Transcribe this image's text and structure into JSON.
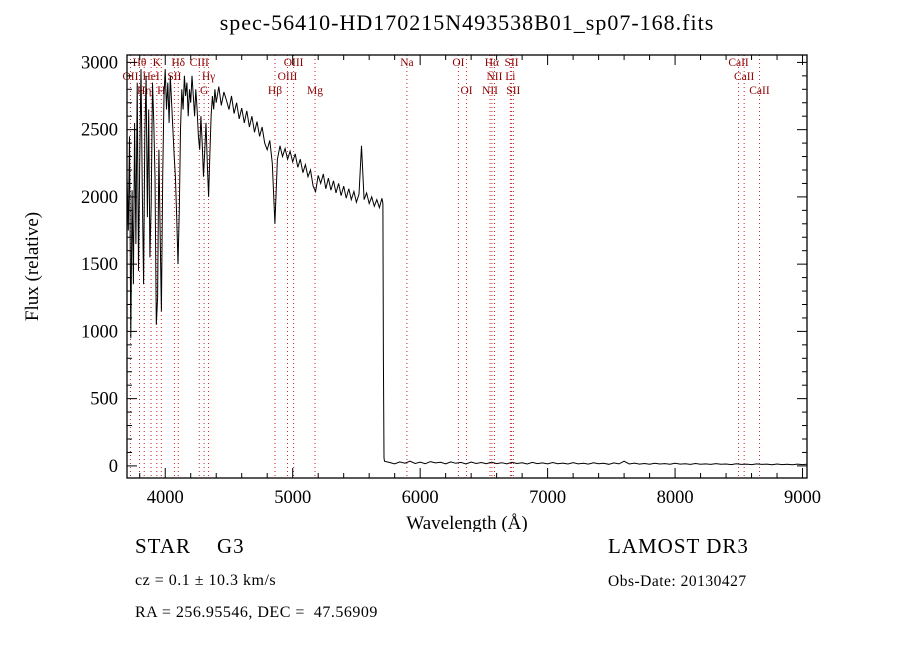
{
  "title": "spec-56410-HD170215N493538B01_sp07-168.fits",
  "footer": {
    "object_type": "STAR",
    "subclass": "G3",
    "cz": "cz = 0.1 ± 10.3 km/s",
    "ra_dec": "RA = 256.95546, DEC =  47.56909",
    "survey": "LAMOST DR3",
    "obs_date": "Obs-Date: 20130427"
  },
  "chart_data": {
    "type": "line",
    "title": "spec-56410-HD170215N493538B01_sp07-168.fits",
    "xlabel": "Wavelength (Å)",
    "ylabel": "Flux (relative)",
    "grid": false,
    "legend": "none",
    "xlim": [
      3700,
      9035
    ],
    "ylim": [
      -90,
      3055
    ],
    "x_ticks": [
      4000,
      5000,
      6000,
      7000,
      8000,
      9000
    ],
    "y_ticks": [
      0,
      500,
      1000,
      1500,
      2000,
      2500,
      3000
    ],
    "line_color": "#000000",
    "marker_color": "#cc2222",
    "label_color": "#8b0000",
    "spectral_lines": [
      {
        "label": "OII",
        "wavelength": 3727,
        "row": 2
      },
      {
        "label": "Hθ",
        "wavelength": 3798,
        "row": 1
      },
      {
        "label": "Hη",
        "wavelength": 3835,
        "row": 3
      },
      {
        "label": "HeI",
        "wavelength": 3889,
        "row": 2
      },
      {
        "label": "K",
        "wavelength": 3934,
        "row": 1
      },
      {
        "label": "H",
        "wavelength": 3969,
        "row": 3
      },
      {
        "label": "SII",
        "wavelength": 4072,
        "row": 2
      },
      {
        "label": "Hδ",
        "wavelength": 4102,
        "row": 1
      },
      {
        "label": "CIII",
        "wavelength": 4267,
        "row": 1
      },
      {
        "label": "G",
        "wavelength": 4305,
        "row": 3
      },
      {
        "label": "Hγ",
        "wavelength": 4340,
        "row": 2
      },
      {
        "label": "Hβ",
        "wavelength": 4861,
        "row": 3
      },
      {
        "label": "OIII",
        "wavelength": 4959,
        "row": 2
      },
      {
        "label": "OIII",
        "wavelength": 5007,
        "row": 1
      },
      {
        "label": "Mg",
        "wavelength": 5175,
        "row": 3
      },
      {
        "label": "Na",
        "wavelength": 5896,
        "row": 1
      },
      {
        "label": "OI",
        "wavelength": 6300,
        "row": 1
      },
      {
        "label": "OI",
        "wavelength": 6364,
        "row": 3
      },
      {
        "label": "NII",
        "wavelength": 6548,
        "row": 3
      },
      {
        "label": "Hα",
        "wavelength": 6563,
        "row": 1
      },
      {
        "label": "NII",
        "wavelength": 6583,
        "row": 2
      },
      {
        "label": "Li",
        "wavelength": 6708,
        "row": 2
      },
      {
        "label": "SII",
        "wavelength": 6717,
        "row": 1
      },
      {
        "label": "SII",
        "wavelength": 6731,
        "row": 3
      },
      {
        "label": "CaII",
        "wavelength": 8498,
        "row": 1
      },
      {
        "label": "CaII",
        "wavelength": 8542,
        "row": 2
      },
      {
        "label": "CaII",
        "wavelength": 8662,
        "row": 3
      }
    ],
    "series": [
      {
        "name": "spectrum",
        "points": [
          [
            3700,
            2150
          ],
          [
            3710,
            1750
          ],
          [
            3720,
            2450
          ],
          [
            3730,
            950
          ],
          [
            3740,
            2050
          ],
          [
            3750,
            1350
          ],
          [
            3760,
            2550
          ],
          [
            3770,
            1650
          ],
          [
            3780,
            2850
          ],
          [
            3790,
            1450
          ],
          [
            3800,
            2250
          ],
          [
            3810,
            2950
          ],
          [
            3820,
            2050
          ],
          [
            3830,
            1350
          ],
          [
            3840,
            2450
          ],
          [
            3850,
            2900
          ],
          [
            3860,
            1850
          ],
          [
            3870,
            2650
          ],
          [
            3880,
            1550
          ],
          [
            3890,
            1950
          ],
          [
            3900,
            2850
          ],
          [
            3910,
            2550
          ],
          [
            3920,
            2150
          ],
          [
            3930,
            1050
          ],
          [
            3940,
            1250
          ],
          [
            3950,
            2350
          ],
          [
            3960,
            1750
          ],
          [
            3970,
            1150
          ],
          [
            3980,
            2150
          ],
          [
            3990,
            2750
          ],
          [
            4000,
            2950
          ],
          [
            4010,
            2650
          ],
          [
            4020,
            2850
          ],
          [
            4030,
            2550
          ],
          [
            4040,
            2900
          ],
          [
            4050,
            2700
          ],
          [
            4060,
            2500
          ],
          [
            4070,
            2300
          ],
          [
            4080,
            2150
          ],
          [
            4090,
            1850
          ],
          [
            4100,
            1500
          ],
          [
            4110,
            1900
          ],
          [
            4120,
            2500
          ],
          [
            4130,
            2800
          ],
          [
            4140,
            2650
          ],
          [
            4150,
            2900
          ],
          [
            4160,
            2750
          ],
          [
            4170,
            2850
          ],
          [
            4180,
            2600
          ],
          [
            4190,
            2800
          ],
          [
            4200,
            2700
          ],
          [
            4210,
            2900
          ],
          [
            4220,
            2750
          ],
          [
            4230,
            2600
          ],
          [
            4240,
            2800
          ],
          [
            4250,
            2650
          ],
          [
            4260,
            2450
          ],
          [
            4270,
            2350
          ],
          [
            4280,
            2600
          ],
          [
            4290,
            2400
          ],
          [
            4300,
            2150
          ],
          [
            4310,
            2350
          ],
          [
            4320,
            2550
          ],
          [
            4330,
            2250
          ],
          [
            4340,
            2000
          ],
          [
            4350,
            2300
          ],
          [
            4360,
            2600
          ],
          [
            4370,
            2750
          ],
          [
            4380,
            2650
          ],
          [
            4390,
            2800
          ],
          [
            4400,
            2700
          ],
          [
            4420,
            2820
          ],
          [
            4440,
            2680
          ],
          [
            4460,
            2780
          ],
          [
            4480,
            2720
          ],
          [
            4500,
            2650
          ],
          [
            4520,
            2750
          ],
          [
            4540,
            2620
          ],
          [
            4560,
            2700
          ],
          [
            4580,
            2580
          ],
          [
            4600,
            2660
          ],
          [
            4620,
            2550
          ],
          [
            4640,
            2640
          ],
          [
            4660,
            2520
          ],
          [
            4680,
            2600
          ],
          [
            4700,
            2480
          ],
          [
            4720,
            2560
          ],
          [
            4740,
            2450
          ],
          [
            4760,
            2520
          ],
          [
            4780,
            2400
          ],
          [
            4800,
            2350
          ],
          [
            4820,
            2420
          ],
          [
            4840,
            2250
          ],
          [
            4860,
            1800
          ],
          [
            4880,
            2280
          ],
          [
            4900,
            2380
          ],
          [
            4920,
            2300
          ],
          [
            4940,
            2360
          ],
          [
            4960,
            2280
          ],
          [
            4980,
            2340
          ],
          [
            5000,
            2260
          ],
          [
            5020,
            2320
          ],
          [
            5040,
            2220
          ],
          [
            5060,
            2280
          ],
          [
            5080,
            2180
          ],
          [
            5100,
            2240
          ],
          [
            5120,
            2150
          ],
          [
            5140,
            2200
          ],
          [
            5160,
            2080
          ],
          [
            5180,
            2040
          ],
          [
            5200,
            2160
          ],
          [
            5220,
            2100
          ],
          [
            5240,
            2170
          ],
          [
            5260,
            2060
          ],
          [
            5280,
            2140
          ],
          [
            5300,
            2050
          ],
          [
            5320,
            2120
          ],
          [
            5340,
            2030
          ],
          [
            5360,
            2100
          ],
          [
            5380,
            2010
          ],
          [
            5400,
            2080
          ],
          [
            5420,
            1990
          ],
          [
            5440,
            2060
          ],
          [
            5460,
            1980
          ],
          [
            5480,
            2040
          ],
          [
            5500,
            1960
          ],
          [
            5520,
            2020
          ],
          [
            5540,
            2380
          ],
          [
            5560,
            1980
          ],
          [
            5580,
            2030
          ],
          [
            5600,
            1950
          ],
          [
            5620,
            2000
          ],
          [
            5640,
            1930
          ],
          [
            5660,
            1980
          ],
          [
            5680,
            1920
          ],
          [
            5700,
            1990
          ],
          [
            5708,
            1950
          ],
          [
            5712,
            800
          ],
          [
            5716,
            60
          ],
          [
            5720,
            35
          ],
          [
            5760,
            25
          ],
          [
            5800,
            15
          ],
          [
            5840,
            30
          ],
          [
            5880,
            20
          ],
          [
            5920,
            35
          ],
          [
            5960,
            18
          ],
          [
            6000,
            28
          ],
          [
            6040,
            16
          ],
          [
            6080,
            32
          ],
          [
            6120,
            22
          ],
          [
            6160,
            27
          ],
          [
            6200,
            15
          ],
          [
            6240,
            30
          ],
          [
            6280,
            19
          ],
          [
            6320,
            26
          ],
          [
            6360,
            14
          ],
          [
            6400,
            29
          ],
          [
            6440,
            18
          ],
          [
            6480,
            25
          ],
          [
            6520,
            16
          ],
          [
            6560,
            28
          ],
          [
            6600,
            17
          ],
          [
            6640,
            24
          ],
          [
            6680,
            15
          ],
          [
            6720,
            27
          ],
          [
            6760,
            18
          ],
          [
            6800,
            23
          ],
          [
            6840,
            14
          ],
          [
            6880,
            26
          ],
          [
            6920,
            17
          ],
          [
            6960,
            22
          ],
          [
            7000,
            15
          ],
          [
            7040,
            25
          ],
          [
            7080,
            16
          ],
          [
            7120,
            21
          ],
          [
            7160,
            14
          ],
          [
            7200,
            24
          ],
          [
            7240,
            15
          ],
          [
            7280,
            20
          ],
          [
            7320,
            13
          ],
          [
            7360,
            23
          ],
          [
            7400,
            16
          ],
          [
            7440,
            19
          ],
          [
            7480,
            12
          ],
          [
            7520,
            22
          ],
          [
            7560,
            15
          ],
          [
            7600,
            35
          ],
          [
            7640,
            14
          ],
          [
            7680,
            21
          ],
          [
            7720,
            13
          ],
          [
            7760,
            18
          ],
          [
            7800,
            12
          ],
          [
            7840,
            20
          ],
          [
            7880,
            14
          ],
          [
            7920,
            17
          ],
          [
            7960,
            12
          ],
          [
            8000,
            19
          ],
          [
            8040,
            13
          ],
          [
            8080,
            16
          ],
          [
            8120,
            11
          ],
          [
            8160,
            18
          ],
          [
            8200,
            12
          ],
          [
            8240,
            15
          ],
          [
            8280,
            11
          ],
          [
            8320,
            17
          ],
          [
            8360,
            12
          ],
          [
            8400,
            14
          ],
          [
            8440,
            10
          ],
          [
            8480,
            16
          ],
          [
            8520,
            11
          ],
          [
            8560,
            13
          ],
          [
            8600,
            10
          ],
          [
            8640,
            15
          ],
          [
            8680,
            11
          ],
          [
            8720,
            13
          ],
          [
            8760,
            9
          ],
          [
            8800,
            14
          ],
          [
            8840,
            10
          ],
          [
            8880,
            12
          ],
          [
            8920,
            9
          ],
          [
            8960,
            13
          ],
          [
            9000,
            10
          ],
          [
            9030,
            12
          ]
        ]
      }
    ]
  }
}
